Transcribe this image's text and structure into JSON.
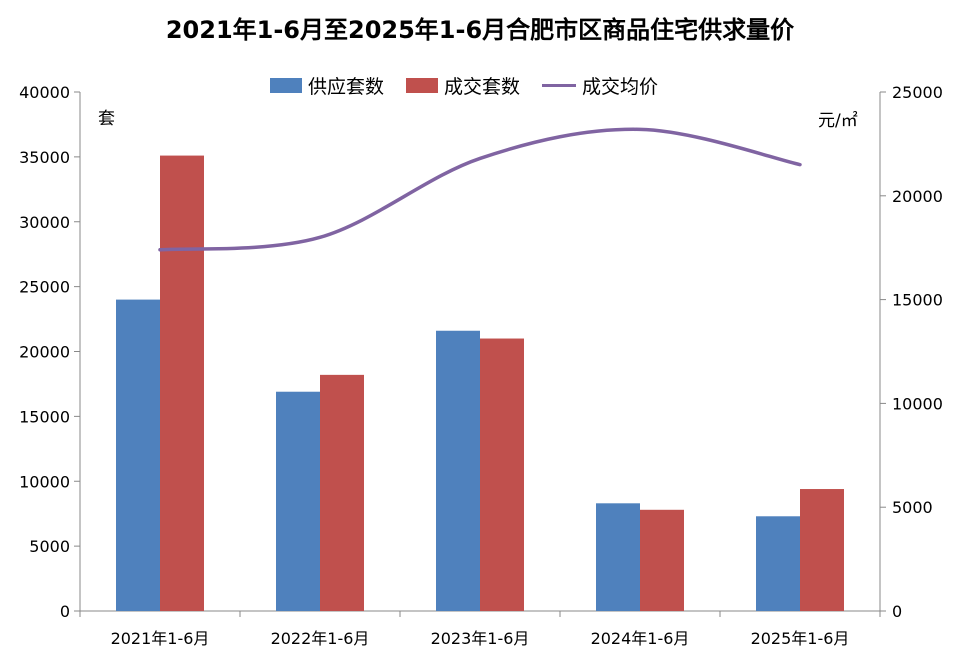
{
  "chart_data": {
    "type": "bar",
    "title": "2021年1-6月至2025年1-6月合肥市区商品住宅供求量价",
    "categories": [
      "2021年1-6月",
      "2022年1-6月",
      "2023年1-6月",
      "2024年1-6月",
      "2025年1-6月"
    ],
    "series": [
      {
        "name": "供应套数",
        "type": "bar",
        "axis": "left",
        "color": "#4F81BD",
        "values": [
          24000,
          16900,
          21600,
          8300,
          7300
        ]
      },
      {
        "name": "成交套数",
        "type": "bar",
        "axis": "left",
        "color": "#C0504D",
        "values": [
          35100,
          18200,
          21000,
          7800,
          9400
        ]
      },
      {
        "name": "成交均价",
        "type": "line",
        "axis": "right",
        "color": "#8064A2",
        "values": [
          17400,
          18000,
          21800,
          23200,
          21500
        ]
      }
    ],
    "yleft": {
      "label": "套",
      "min": 0,
      "max": 40000,
      "step": 5000,
      "ticks": [
        "0",
        "5000",
        "10000",
        "15000",
        "20000",
        "25000",
        "30000",
        "35000",
        "40000"
      ]
    },
    "yright": {
      "label": "元/㎡",
      "min": 0,
      "max": 25000,
      "step": 5000,
      "ticks": [
        "0",
        "5000",
        "10000",
        "15000",
        "20000",
        "25000"
      ]
    },
    "legend_position": "top",
    "grid": false
  }
}
